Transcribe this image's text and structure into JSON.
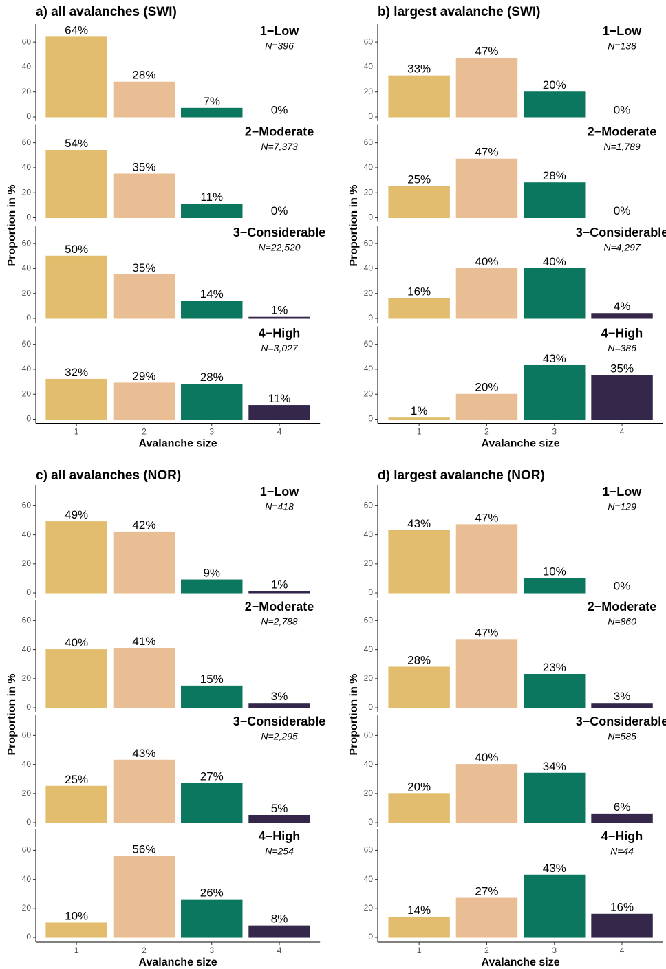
{
  "chart_data": [
    {
      "type": "bar",
      "title": "a) all avalanches (SWI)",
      "xlabel": "Avalanche size",
      "ylabel": "Proportion in %",
      "categories": [
        "1",
        "2",
        "3",
        "4"
      ],
      "colors": [
        "#e1bd6d",
        "#eabe94",
        "#0b775e",
        "#35274a"
      ],
      "ylim": [
        -3.3,
        74.4
      ],
      "yticks": [
        0,
        20,
        40,
        60
      ],
      "facets": [
        {
          "title": "1−Low",
          "subtitle": "N=396",
          "values": [
            64,
            28,
            7,
            0
          ],
          "value_labels": [
            "64%",
            "28%",
            "7%",
            "0%"
          ]
        },
        {
          "title": "2−Moderate",
          "subtitle": "N=7,373",
          "values": [
            54,
            35,
            11,
            0
          ],
          "value_labels": [
            "54%",
            "35%",
            "11%",
            "0%"
          ]
        },
        {
          "title": "3−Considerable",
          "subtitle": "N=22,520",
          "values": [
            50,
            35,
            14,
            1
          ],
          "value_labels": [
            "50%",
            "35%",
            "14%",
            "1%"
          ]
        },
        {
          "title": "4−High",
          "subtitle": "N=3,027",
          "values": [
            32,
            29,
            28,
            11
          ],
          "value_labels": [
            "32%",
            "29%",
            "28%",
            "11%"
          ]
        }
      ]
    },
    {
      "type": "bar",
      "title": "b) largest avalanche (SWI)",
      "xlabel": "Avalanche size",
      "ylabel": "Proportion in %",
      "categories": [
        "1",
        "2",
        "3",
        "4"
      ],
      "colors": [
        "#e1bd6d",
        "#eabe94",
        "#0b775e",
        "#35274a"
      ],
      "ylim": [
        -3.3,
        74.4
      ],
      "yticks": [
        0,
        20,
        40,
        60
      ],
      "facets": [
        {
          "title": "1−Low",
          "subtitle": "N=138",
          "values": [
            33,
            47,
            20,
            0
          ],
          "value_labels": [
            "33%",
            "47%",
            "20%",
            "0%"
          ]
        },
        {
          "title": "2−Moderate",
          "subtitle": "N=1,789",
          "values": [
            25,
            47,
            28,
            0
          ],
          "value_labels": [
            "25%",
            "47%",
            "28%",
            "0%"
          ]
        },
        {
          "title": "3−Considerable",
          "subtitle": "N=4,297",
          "values": [
            16,
            40,
            40,
            4
          ],
          "value_labels": [
            "16%",
            "40%",
            "40%",
            "4%"
          ]
        },
        {
          "title": "4−High",
          "subtitle": "N=386",
          "values": [
            1,
            20,
            43,
            35
          ],
          "value_labels": [
            "1%",
            "20%",
            "43%",
            "35%"
          ]
        }
      ]
    },
    {
      "type": "bar",
      "title": "c) all avalanches (NOR)",
      "xlabel": "Avalanche size",
      "ylabel": "Proportion in %",
      "categories": [
        "1",
        "2",
        "3",
        "4"
      ],
      "colors": [
        "#e1bd6d",
        "#eabe94",
        "#0b775e",
        "#35274a"
      ],
      "ylim": [
        -3.3,
        74.4
      ],
      "yticks": [
        0,
        20,
        40,
        60
      ],
      "facets": [
        {
          "title": "1−Low",
          "subtitle": "N=418",
          "values": [
            49,
            42,
            9,
            1
          ],
          "value_labels": [
            "49%",
            "42%",
            "9%",
            "1%"
          ]
        },
        {
          "title": "2−Moderate",
          "subtitle": "N=2,788",
          "values": [
            40,
            41,
            15,
            3
          ],
          "value_labels": [
            "40%",
            "41%",
            "15%",
            "3%"
          ]
        },
        {
          "title": "3−Considerable",
          "subtitle": "N=2,295",
          "values": [
            25,
            43,
            27,
            5
          ],
          "value_labels": [
            "25%",
            "43%",
            "27%",
            "5%"
          ]
        },
        {
          "title": "4−High",
          "subtitle": "N=254",
          "values": [
            10,
            56,
            26,
            8
          ],
          "value_labels": [
            "10%",
            "56%",
            "26%",
            "8%"
          ]
        }
      ]
    },
    {
      "type": "bar",
      "title": "d) largest avalanche (NOR)",
      "xlabel": "Avalanche size",
      "ylabel": "Proportion in %",
      "categories": [
        "1",
        "2",
        "3",
        "4"
      ],
      "colors": [
        "#e1bd6d",
        "#eabe94",
        "#0b775e",
        "#35274a"
      ],
      "ylim": [
        -3.3,
        74.4
      ],
      "yticks": [
        0,
        20,
        40,
        60
      ],
      "facets": [
        {
          "title": "1−Low",
          "subtitle": "N=129",
          "values": [
            43,
            47,
            10,
            0
          ],
          "value_labels": [
            "43%",
            "47%",
            "10%",
            "0%"
          ]
        },
        {
          "title": "2−Moderate",
          "subtitle": "N=860",
          "values": [
            28,
            47,
            23,
            3
          ],
          "value_labels": [
            "28%",
            "47%",
            "23%",
            "3%"
          ]
        },
        {
          "title": "3−Considerable",
          "subtitle": "N=585",
          "values": [
            20,
            40,
            34,
            6
          ],
          "value_labels": [
            "20%",
            "40%",
            "34%",
            "6%"
          ]
        },
        {
          "title": "4−High",
          "subtitle": "N=44",
          "values": [
            14,
            27,
            43,
            16
          ],
          "value_labels": [
            "14%",
            "27%",
            "43%",
            "16%"
          ]
        }
      ]
    }
  ]
}
